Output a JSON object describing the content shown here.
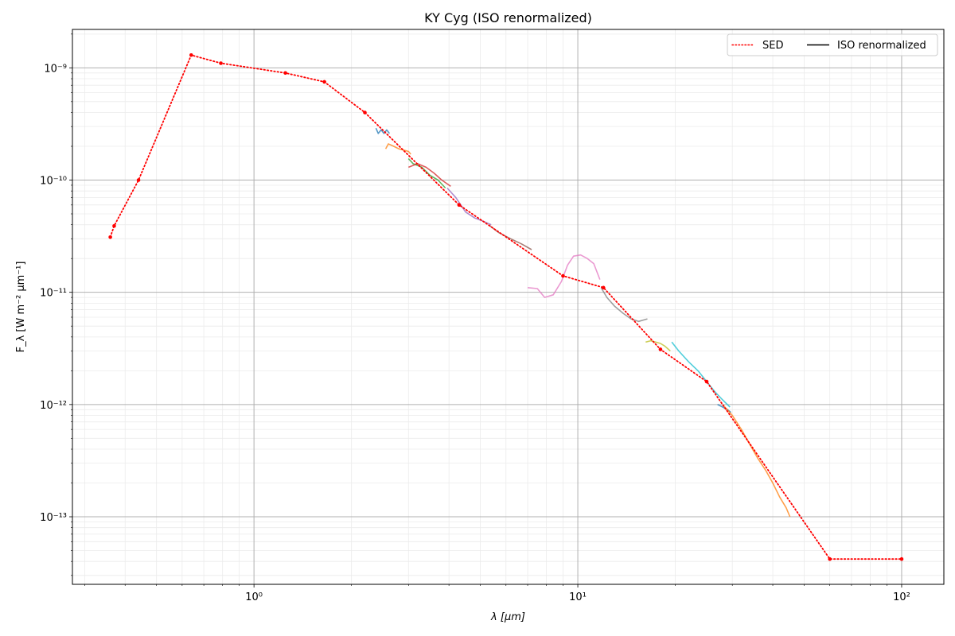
{
  "chart_data": {
    "type": "line",
    "title": "KY Cyg (ISO renormalized)",
    "xlabel": "λ [μm]",
    "ylabel": "F_λ [W m⁻² μm⁻¹]",
    "xscale": "log",
    "yscale": "log",
    "xlim": [
      0.275,
      135
    ],
    "ylim": [
      2.5e-14,
      2.2e-09
    ],
    "x_ticks": [
      {
        "value": 1,
        "label": "10⁰"
      },
      {
        "value": 10,
        "label": "10¹"
      },
      {
        "value": 100,
        "label": "10²"
      }
    ],
    "y_ticks": [
      {
        "value": 1e-13,
        "label": "10⁻¹³"
      },
      {
        "value": 1e-12,
        "label": "10⁻¹²"
      },
      {
        "value": 1e-11,
        "label": "10⁻¹¹"
      },
      {
        "value": 1e-10,
        "label": "10⁻¹⁰"
      },
      {
        "value": 1e-09,
        "label": "10⁻⁹"
      }
    ],
    "grid": true,
    "legend": {
      "position": "top-right",
      "entries": [
        {
          "label": "SED",
          "style": "dotted",
          "color": "#ff0000"
        },
        {
          "label": "ISO renormalized",
          "style": "solid",
          "color": "#000000"
        }
      ]
    },
    "sed": {
      "name": "SED",
      "color": "#ff0000",
      "x": [
        0.36,
        0.37,
        0.44,
        0.64,
        0.79,
        1.25,
        1.65,
        2.2,
        4.3,
        9.0,
        12.0,
        18.0,
        25.0,
        60.0,
        100.0
      ],
      "y": [
        3.1e-11,
        3.9e-11,
        1e-10,
        1.3e-09,
        1.1e-09,
        9e-10,
        7.5e-10,
        4e-10,
        6e-11,
        1.4e-11,
        1.1e-11,
        3.1e-12,
        1.6e-12,
        4.2e-14,
        4.2e-14
      ]
    },
    "iso": {
      "name": "ISO renormalized",
      "segments": [
        {
          "color": "#1f77b4",
          "x": [
            2.38,
            2.42,
            2.47,
            2.52,
            2.57,
            2.62
          ],
          "y": [
            2.9e-10,
            2.6e-10,
            2.8e-10,
            2.6e-10,
            2.8e-10,
            2.6e-10
          ]
        },
        {
          "color": "#ff7f0e",
          "x": [
            2.55,
            2.6,
            2.7,
            2.8,
            2.9,
            3.0,
            3.05
          ],
          "y": [
            1.9e-10,
            2.1e-10,
            2e-10,
            1.9e-10,
            1.85e-10,
            1.8e-10,
            1.7e-10
          ]
        },
        {
          "color": "#2ca02c",
          "x": [
            3.0,
            3.1,
            3.3,
            3.5,
            3.7,
            3.9
          ],
          "y": [
            1.55e-10,
            1.4e-10,
            1.3e-10,
            1.1e-10,
            1e-10,
            8.5e-11
          ]
        },
        {
          "color": "#d62728",
          "x": [
            3.0,
            3.2,
            3.4,
            3.6,
            3.8,
            4.05
          ],
          "y": [
            1.3e-10,
            1.4e-10,
            1.3e-10,
            1.15e-10,
            1e-10,
            8.8e-11
          ]
        },
        {
          "color": "#9467bd",
          "x": [
            3.95,
            4.2,
            4.5,
            4.8,
            5.1,
            5.4
          ],
          "y": [
            8.5e-11,
            7e-11,
            5.2e-11,
            4.6e-11,
            4.3e-11,
            4e-11
          ]
        },
        {
          "color": "#8c564b",
          "x": [
            5.3,
            5.7,
            6.2,
            6.7,
            7.2
          ],
          "y": [
            4e-11,
            3.4e-11,
            3e-11,
            2.7e-11,
            2.4e-11
          ]
        },
        {
          "color": "#e377c2",
          "x": [
            7.0,
            7.5,
            7.9,
            8.4,
            8.9,
            9.3,
            9.7,
            10.2,
            10.7,
            11.2,
            11.7
          ],
          "y": [
            1.1e-11,
            1.08e-11,
            9e-12,
            9.5e-12,
            1.25e-11,
            1.75e-11,
            2.1e-11,
            2.15e-11,
            2e-11,
            1.8e-11,
            1.3e-11
          ]
        },
        {
          "color": "#7f7f7f",
          "x": [
            11.8,
            12.3,
            13.0,
            13.8,
            14.6,
            15.4,
            16.4
          ],
          "y": [
            1.1e-11,
            9e-12,
            7.5e-12,
            6.5e-12,
            5.8e-12,
            5.5e-12,
            5.8e-12
          ]
        },
        {
          "color": "#bcbd22",
          "x": [
            16.2,
            16.8,
            17.4,
            18.0,
            18.6,
            19.3
          ],
          "y": [
            3.6e-12,
            3.7e-12,
            3.6e-12,
            3.5e-12,
            3.3e-12,
            3e-12
          ]
        },
        {
          "color": "#17becf",
          "x": [
            19.5,
            20.5,
            22.0,
            23.5,
            25.0,
            26.5,
            28.0,
            29.5
          ],
          "y": [
            3.6e-12,
            3e-12,
            2.4e-12,
            2e-12,
            1.6e-12,
            1.3e-12,
            1.1e-12,
            9.5e-13
          ]
        },
        {
          "color": "#1f77b4",
          "x": [
            27.0,
            28.0,
            29.0,
            29.7
          ],
          "y": [
            1e-12,
            9.5e-13,
            9e-13,
            8.5e-13
          ]
        },
        {
          "color": "#ff7f0e",
          "x": [
            28.0,
            30.0,
            32.0,
            34.0,
            36.0,
            38.0,
            40.0,
            42.0,
            44.0,
            45.2
          ],
          "y": [
            1e-12,
            8e-13,
            6e-13,
            4.4e-13,
            3.3e-13,
            2.6e-13,
            2e-13,
            1.5e-13,
            1.2e-13,
            1e-13
          ]
        }
      ]
    }
  }
}
